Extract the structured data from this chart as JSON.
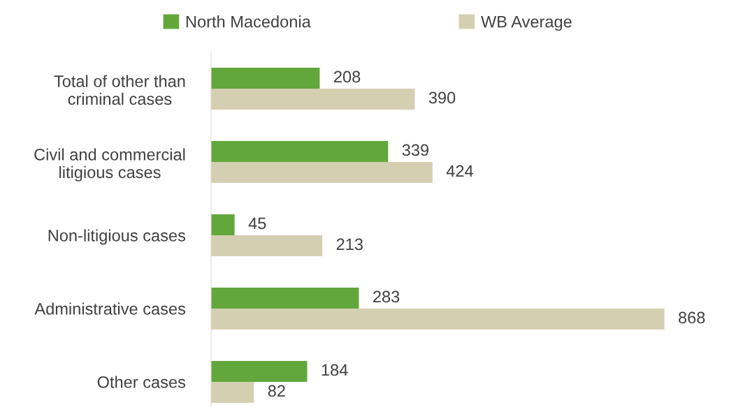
{
  "chart_data": {
    "type": "bar",
    "orientation": "horizontal",
    "categories": [
      "Total of other than\ncriminal cases",
      "Civil and commercial\nlitigious cases",
      "Non-litigious cases",
      "Administrative cases",
      "Other cases"
    ],
    "series": [
      {
        "name": "North Macedonia",
        "color": "#62a73b",
        "values": [
          208,
          339,
          45,
          283,
          184
        ]
      },
      {
        "name": "WB Average",
        "color": "#d5cfb2",
        "values": [
          390,
          424,
          213,
          868,
          82
        ]
      }
    ],
    "data_labels": true,
    "legend": "top",
    "grid": false
  }
}
